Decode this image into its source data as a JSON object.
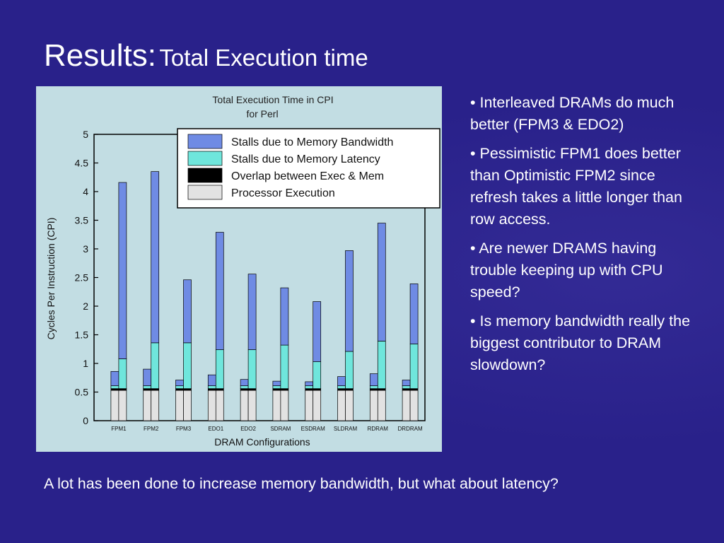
{
  "slide": {
    "title_main": "Results:",
    "title_sub": "Total Execution time",
    "bullets": [
      "• Interleaved DRAMs do much better (FPM3 & EDO2)",
      "• Pessimistic FPM1 does better than Optimistic FPM2 since refresh takes a little longer than row access.",
      "• Are newer DRAMS having trouble keeping up with CPU speed?",
      "• Is memory bandwidth really the biggest contributor to DRAM slowdown?"
    ],
    "footer": "A lot has been done to increase memory bandwidth, but what about latency?"
  },
  "chart_data": {
    "type": "bar",
    "title": "Total Execution Time in CPI",
    "subtitle": "for Perl",
    "xlabel": "DRAM Configurations",
    "ylabel": "Cycles Per Instruction (CPI)",
    "ylim": [
      0,
      5
    ],
    "yticks": [
      "0",
      "0.5",
      "1",
      "1.5",
      "2",
      "2.5",
      "3",
      "3.5",
      "4",
      "4.5",
      "5"
    ],
    "grid": false,
    "legend_position": "top-right",
    "categories": [
      "FPM1",
      "FPM2",
      "FPM3",
      "EDO1",
      "EDO2",
      "SDRAM",
      "ESDRAM",
      "SLDRAM",
      "RDRAM",
      "DRDRAM"
    ],
    "legend": [
      {
        "label": "Stalls due to Memory Bandwidth",
        "color": "#6f8be4"
      },
      {
        "label": "Stalls due to Memory Latency",
        "color": "#6fe6dc"
      },
      {
        "label": "Overlap between Exec & Mem",
        "color": "#000000"
      },
      {
        "label": "Processor Execution",
        "color": "#e2e2e2"
      }
    ],
    "bars_per_category": 2,
    "series": [
      {
        "name": "Processor Execution",
        "values": [
          [
            0.53,
            0.53
          ],
          [
            0.53,
            0.53
          ],
          [
            0.53,
            0.53
          ],
          [
            0.53,
            0.53
          ],
          [
            0.53,
            0.53
          ],
          [
            0.53,
            0.53
          ],
          [
            0.53,
            0.53
          ],
          [
            0.53,
            0.53
          ],
          [
            0.53,
            0.53
          ],
          [
            0.53,
            0.53
          ]
        ]
      },
      {
        "name": "Overlap between Exec & Mem",
        "values": [
          [
            0.03,
            0.03
          ],
          [
            0.03,
            0.03
          ],
          [
            0.03,
            0.03
          ],
          [
            0.03,
            0.03
          ],
          [
            0.03,
            0.03
          ],
          [
            0.03,
            0.03
          ],
          [
            0.03,
            0.03
          ],
          [
            0.03,
            0.03
          ],
          [
            0.03,
            0.03
          ],
          [
            0.03,
            0.03
          ]
        ]
      },
      {
        "name": "Stalls due to Memory Latency",
        "values": [
          [
            0.05,
            0.52
          ],
          [
            0.05,
            0.8
          ],
          [
            0.05,
            0.8
          ],
          [
            0.05,
            0.68
          ],
          [
            0.05,
            0.68
          ],
          [
            0.05,
            0.76
          ],
          [
            0.05,
            0.47
          ],
          [
            0.05,
            0.65
          ],
          [
            0.05,
            0.83
          ],
          [
            0.05,
            0.78
          ]
        ]
      },
      {
        "name": "Stalls due to Memory Bandwidth",
        "values": [
          [
            0.25,
            3.08
          ],
          [
            0.29,
            2.99
          ],
          [
            0.1,
            1.1
          ],
          [
            0.19,
            2.05
          ],
          [
            0.11,
            1.32
          ],
          [
            0.08,
            1.0
          ],
          [
            0.07,
            1.05
          ],
          [
            0.16,
            1.76
          ],
          [
            0.21,
            2.06
          ],
          [
            0.1,
            1.05
          ]
        ]
      }
    ]
  }
}
